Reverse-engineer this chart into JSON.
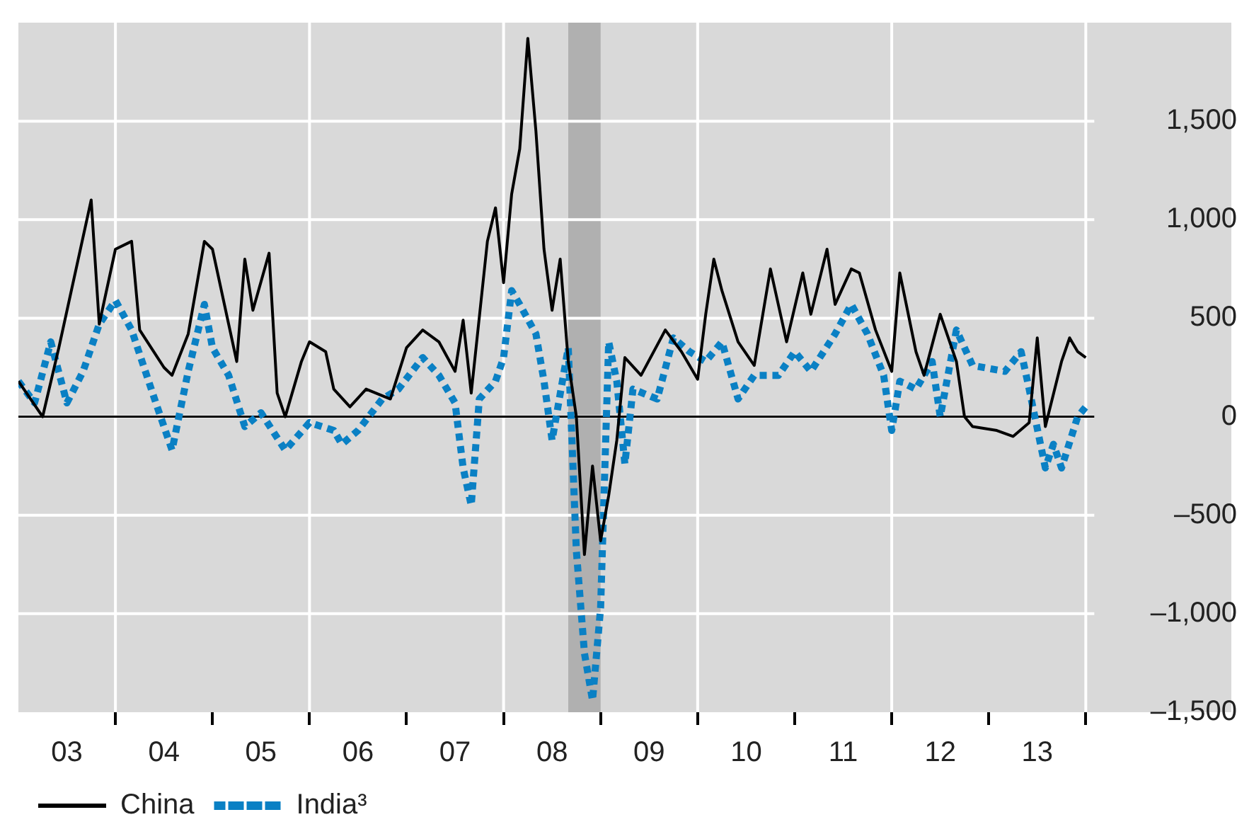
{
  "chart_data": {
    "type": "line",
    "xlim": [
      "2003-01",
      "2015-07"
    ],
    "ylim": [
      -1500,
      2000
    ],
    "xticks": [
      {
        "value": "2003-07",
        "label": "03"
      },
      {
        "value": "2004-01",
        "label": null
      },
      {
        "value": "2004-07",
        "label": "04"
      },
      {
        "value": "2005-01",
        "label": null
      },
      {
        "value": "2005-07",
        "label": "05"
      },
      {
        "value": "2006-01",
        "label": null
      },
      {
        "value": "2006-07",
        "label": "06"
      },
      {
        "value": "2007-01",
        "label": null
      },
      {
        "value": "2007-07",
        "label": "07"
      },
      {
        "value": "2008-01",
        "label": null
      },
      {
        "value": "2008-07",
        "label": "08"
      },
      {
        "value": "2009-01",
        "label": null
      },
      {
        "value": "2009-07",
        "label": "09"
      },
      {
        "value": "2010-01",
        "label": null
      },
      {
        "value": "2010-07",
        "label": "10"
      },
      {
        "value": "2011-01",
        "label": null
      },
      {
        "value": "2011-07",
        "label": "11"
      },
      {
        "value": "2012-01",
        "label": null
      },
      {
        "value": "2012-07",
        "label": "12"
      },
      {
        "value": "2013-01",
        "label": null
      },
      {
        "value": "2013-07",
        "label": "13"
      },
      {
        "value": "2014-01",
        "label": null
      }
    ],
    "yticks": [
      {
        "value": -1500,
        "label": "–1,500"
      },
      {
        "value": -1000,
        "label": "–1,000"
      },
      {
        "value": -500,
        "label": "–500"
      },
      0,
      500,
      {
        "value": 1000,
        "label": "1,000"
      },
      {
        "value": 1500,
        "label": "1,500"
      }
    ],
    "grid": true,
    "legend": "bottom",
    "marker": "none",
    "bands": [
      {
        "axis": "x",
        "from": "2008-09",
        "to": "2009-01",
        "color": "#b0b0b0"
      }
    ],
    "ref_lines": [
      {
        "axis": "y",
        "value": 0,
        "color": "#000000"
      }
    ],
    "series": [
      {
        "name": "China",
        "color": "#000000",
        "line_style": "solid",
        "x": [
          "2003-01",
          "2003-04",
          "2003-06",
          "2003-10",
          "2003-11",
          "2004-01",
          "2004-03",
          "2004-04",
          "2004-07",
          "2004-08",
          "2004-10",
          "2004-12",
          "2005-01",
          "2005-03",
          "2005-04",
          "2005-05",
          "2005-06",
          "2005-08",
          "2005-09",
          "2005-10",
          "2005-12",
          "2006-01",
          "2006-03",
          "2006-04",
          "2006-06",
          "2006-08",
          "2006-11",
          "2007-01",
          "2007-03",
          "2007-05",
          "2007-07",
          "2007-08",
          "2007-09",
          "2007-11",
          "2007-12",
          "2008-01",
          "2008-02",
          "2008-03",
          "2008-04",
          "2008-05",
          "2008-06",
          "2008-07",
          "2008-08",
          "2008-09",
          "2008-10",
          "2008-11",
          "2008-12",
          "2009-01",
          "2009-02",
          "2009-03",
          "2009-04",
          "2009-06",
          "2009-09",
          "2009-11",
          "2010-01",
          "2010-02",
          "2010-03",
          "2010-04",
          "2010-06",
          "2010-08",
          "2010-10",
          "2010-12",
          "2011-02",
          "2011-03",
          "2011-05",
          "2011-06",
          "2011-08",
          "2011-09",
          "2011-11",
          "2012-01",
          "2012-02",
          "2012-04",
          "2012-05",
          "2012-07",
          "2012-09",
          "2012-10",
          "2012-11",
          "2013-02",
          "2013-04",
          "2013-06",
          "2013-07",
          "2013-08",
          "2013-10",
          "2013-11",
          "2013-12",
          "2014-01"
        ],
        "values": [
          180,
          0,
          350,
          1100,
          470,
          850,
          890,
          440,
          250,
          210,
          420,
          890,
          850,
          470,
          280,
          800,
          540,
          830,
          120,
          0,
          280,
          380,
          330,
          140,
          50,
          140,
          90,
          350,
          440,
          380,
          230,
          490,
          120,
          890,
          1060,
          680,
          1130,
          1360,
          1920,
          1450,
          850,
          540,
          800,
          280,
          0,
          -700,
          -250,
          -630,
          -400,
          -120,
          300,
          210,
          440,
          330,
          190,
          520,
          800,
          640,
          380,
          260,
          750,
          380,
          730,
          520,
          850,
          570,
          750,
          730,
          440,
          230,
          730,
          330,
          210,
          520,
          280,
          0,
          -50,
          -70,
          -100,
          -30,
          400,
          -50,
          280,
          400,
          330,
          300
        ]
      },
      {
        "name": "India³",
        "color": "#0a80c4",
        "line_style": "dotted",
        "x": [
          "2003-01",
          "2003-03",
          "2003-05",
          "2003-07",
          "2003-09",
          "2003-11",
          "2004-01",
          "2004-03",
          "2004-06",
          "2004-08",
          "2004-10",
          "2004-12",
          "2005-01",
          "2005-03",
          "2005-05",
          "2005-07",
          "2005-10",
          "2006-01",
          "2006-04",
          "2006-05",
          "2006-07",
          "2006-10",
          "2006-12",
          "2007-03",
          "2007-05",
          "2007-07",
          "2007-08",
          "2007-09",
          "2007-10",
          "2007-12",
          "2008-01",
          "2008-02",
          "2008-03",
          "2008-05",
          "2008-06",
          "2008-07",
          "2008-09",
          "2008-10",
          "2008-11",
          "2008-12",
          "2009-01",
          "2009-02",
          "2009-03",
          "2009-04",
          "2009-05",
          "2009-08",
          "2009-10",
          "2009-12",
          "2010-02",
          "2010-04",
          "2010-06",
          "2010-08",
          "2010-11",
          "2011-01",
          "2011-03",
          "2011-06",
          "2011-08",
          "2011-10",
          "2011-12",
          "2012-01",
          "2012-02",
          "2012-04",
          "2012-06",
          "2012-07",
          "2012-09",
          "2012-11",
          "2013-03",
          "2013-05",
          "2013-06",
          "2013-08",
          "2013-09",
          "2013-10",
          "2013-12",
          "2014-01"
        ],
        "values": [
          180,
          70,
          380,
          70,
          230,
          470,
          590,
          440,
          70,
          -170,
          230,
          570,
          350,
          210,
          -50,
          20,
          -170,
          -30,
          -70,
          -140,
          -70,
          90,
          140,
          300,
          210,
          70,
          -260,
          -450,
          90,
          180,
          300,
          640,
          570,
          420,
          180,
          -120,
          350,
          -680,
          -1200,
          -1440,
          -970,
          380,
          180,
          -240,
          140,
          90,
          400,
          330,
          280,
          380,
          90,
          210,
          210,
          330,
          230,
          420,
          570,
          420,
          210,
          -70,
          180,
          140,
          280,
          0,
          440,
          260,
          230,
          330,
          140,
          -260,
          -140,
          -260,
          0,
          50
        ]
      }
    ]
  }
}
